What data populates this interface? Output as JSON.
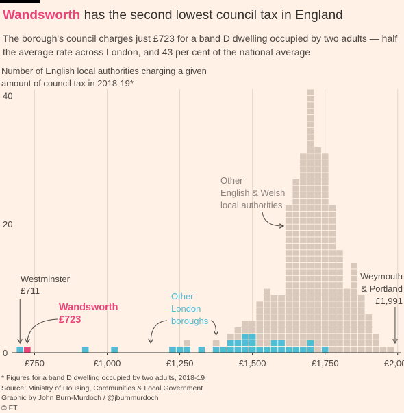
{
  "title_highlight": "Wandsworth",
  "title_rest": " has the second lowest council tax in England",
  "subtitle": "The borough's council charges just £723 for a band D dwelling occupied by two adults — half the average rate across London, and 43 per cent of the national average",
  "y_axis_label": "Number of English local authorities charging a given amount of council tax in 2018-19*",
  "footer": {
    "note": "* Figures for a band D dwelling occupied by two adults, 2018-19",
    "source": "Source: Ministry of Housing, Communities & Local Government",
    "credit": "Graphic by John Burn-Murdoch / @jburnmurdoch",
    "copyright": "© FT"
  },
  "colors": {
    "background": "#fff1e5",
    "other_authorities": "#d9c8bc",
    "london": "#4fbdd3",
    "wandsworth": "#e8457a",
    "grid": "#e6d6cb",
    "text": "#4d4845"
  },
  "annotations": {
    "westminster": {
      "name": "Westminster",
      "value": "£711"
    },
    "wandsworth": {
      "name": "Wandsworth",
      "value": "£723"
    },
    "london": {
      "lines": [
        "Other",
        "London",
        "boroughs"
      ]
    },
    "other": {
      "lines": [
        "Other",
        "English & Welsh",
        "local authorities"
      ]
    },
    "weymouth": {
      "lines": [
        "Weymouth",
        "& Portland",
        "£1,991"
      ]
    }
  },
  "chart_data": {
    "type": "bar",
    "subtype": "stacked unit histogram",
    "xlim": [
      690,
      2010
    ],
    "ylim": [
      0,
      41
    ],
    "bin_width": 25,
    "x_ticks": [
      750,
      1000,
      1250,
      1500,
      1750,
      2000
    ],
    "x_tick_labels": [
      "£750",
      "£1,000",
      "£1,250",
      "£1,500",
      "£1,750",
      "£2,000"
    ],
    "y_ticks": [
      0,
      20,
      40
    ],
    "y_tick_labels": [
      "0",
      "20",
      "40"
    ],
    "grid": true,
    "bins": [
      {
        "x": 700,
        "london": 1,
        "wandsworth": 0,
        "other": 0
      },
      {
        "x": 725,
        "london": 0,
        "wandsworth": 1,
        "other": 0
      },
      {
        "x": 925,
        "london": 1,
        "wandsworth": 0,
        "other": 0
      },
      {
        "x": 1025,
        "london": 1,
        "wandsworth": 0,
        "other": 0
      },
      {
        "x": 1225,
        "london": 1,
        "wandsworth": 0,
        "other": 0
      },
      {
        "x": 1250,
        "london": 1,
        "wandsworth": 0,
        "other": 0
      },
      {
        "x": 1275,
        "london": 1,
        "wandsworth": 0,
        "other": 1
      },
      {
        "x": 1325,
        "london": 1,
        "wandsworth": 0,
        "other": 0
      },
      {
        "x": 1375,
        "london": 1,
        "wandsworth": 0,
        "other": 1
      },
      {
        "x": 1400,
        "london": 1,
        "wandsworth": 0,
        "other": 0
      },
      {
        "x": 1425,
        "london": 2,
        "wandsworth": 0,
        "other": 1
      },
      {
        "x": 1450,
        "london": 2,
        "wandsworth": 0,
        "other": 2
      },
      {
        "x": 1475,
        "london": 3,
        "wandsworth": 0,
        "other": 2
      },
      {
        "x": 1500,
        "london": 3,
        "wandsworth": 0,
        "other": 2
      },
      {
        "x": 1525,
        "london": 1,
        "wandsworth": 0,
        "other": 7
      },
      {
        "x": 1550,
        "london": 1,
        "wandsworth": 0,
        "other": 9
      },
      {
        "x": 1575,
        "london": 2,
        "wandsworth": 0,
        "other": 7
      },
      {
        "x": 1600,
        "london": 2,
        "wandsworth": 0,
        "other": 7
      },
      {
        "x": 1625,
        "london": 1,
        "wandsworth": 0,
        "other": 22
      },
      {
        "x": 1650,
        "london": 1,
        "wandsworth": 0,
        "other": 26
      },
      {
        "x": 1675,
        "london": 1,
        "wandsworth": 0,
        "other": 30
      },
      {
        "x": 1700,
        "london": 2,
        "wandsworth": 0,
        "other": 39
      },
      {
        "x": 1725,
        "london": 0,
        "wandsworth": 0,
        "other": 32
      },
      {
        "x": 1750,
        "london": 1,
        "wandsworth": 0,
        "other": 30
      },
      {
        "x": 1775,
        "london": 0,
        "wandsworth": 0,
        "other": 23
      },
      {
        "x": 1800,
        "london": 0,
        "wandsworth": 0,
        "other": 16
      },
      {
        "x": 1825,
        "london": 0,
        "wandsworth": 0,
        "other": 10
      },
      {
        "x": 1850,
        "london": 0,
        "wandsworth": 0,
        "other": 14
      },
      {
        "x": 1875,
        "london": 0,
        "wandsworth": 0,
        "other": 9
      },
      {
        "x": 1900,
        "london": 0,
        "wandsworth": 0,
        "other": 6
      },
      {
        "x": 1925,
        "london": 0,
        "wandsworth": 0,
        "other": 3
      },
      {
        "x": 1950,
        "london": 0,
        "wandsworth": 0,
        "other": 1
      },
      {
        "x": 1975,
        "london": 0,
        "wandsworth": 0,
        "other": 1
      }
    ]
  }
}
